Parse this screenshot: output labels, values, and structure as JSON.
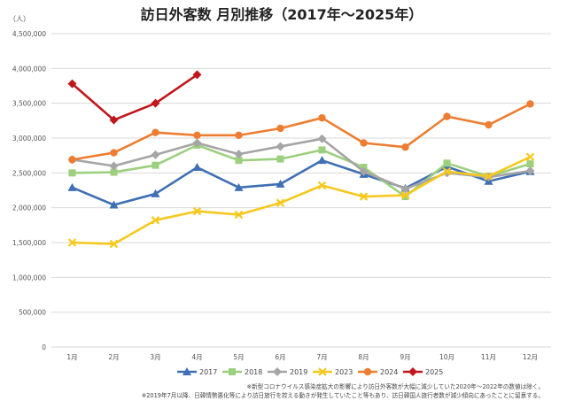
{
  "chart_data": {
    "type": "line",
    "title": "訪日外客数 月別推移（2017年〜2025年）",
    "ylabel": "（人）",
    "categories": [
      "1月",
      "2月",
      "3月",
      "4月",
      "5月",
      "6月",
      "7月",
      "8月",
      "9月",
      "10月",
      "11月",
      "12月"
    ],
    "ylim": [
      0,
      4500000
    ],
    "yticks": [
      "0",
      "500,000",
      "1,000,000",
      "1,500,000",
      "2,000,000",
      "2,500,000",
      "3,000,000",
      "3,500,000",
      "4,000,000",
      "4,500,000"
    ],
    "grid": true,
    "legend_position": "bottom",
    "series": [
      {
        "name": "2017",
        "color": "#3f6fb5",
        "marker": "triangle",
        "values": [
          2290000,
          2040000,
          2200000,
          2580000,
          2290000,
          2340000,
          2680000,
          2480000,
          2280000,
          2590000,
          2380000,
          2520000
        ]
      },
      {
        "name": "2018",
        "color": "#9ccf7e",
        "marker": "square",
        "values": [
          2500000,
          2510000,
          2610000,
          2900000,
          2680000,
          2700000,
          2830000,
          2580000,
          2160000,
          2640000,
          2450000,
          2630000
        ]
      },
      {
        "name": "2019",
        "color": "#a5a5a5",
        "marker": "diamond",
        "values": [
          2690000,
          2600000,
          2760000,
          2930000,
          2770000,
          2880000,
          2990000,
          2520000,
          2270000,
          2500000,
          2440000,
          2530000
        ]
      },
      {
        "name": "2023",
        "color": "#f6c81e",
        "marker": "cross",
        "values": [
          1500000,
          1480000,
          1820000,
          1950000,
          1900000,
          2070000,
          2320000,
          2160000,
          2180000,
          2520000,
          2450000,
          2730000
        ]
      },
      {
        "name": "2024",
        "color": "#ed7d31",
        "marker": "circle",
        "values": [
          2690000,
          2790000,
          3080000,
          3040000,
          3040000,
          3140000,
          3290000,
          2930000,
          2870000,
          3310000,
          3190000,
          3490000
        ]
      },
      {
        "name": "2025",
        "color": "#c0171d",
        "marker": "diamond",
        "values": [
          3780000,
          3260000,
          3500000,
          3910000,
          null,
          null,
          null,
          null,
          null,
          null,
          null,
          null
        ]
      }
    ],
    "notes": [
      "※新型コロナウイルス感染症拡大の影響により訪日外客数が大幅に減少していた2020年〜2022年の数値は除く。",
      "※2019年7月以降、日韓情勢悪化等により訪日旅行を控える動きが発生していたこと等もあり、訪日韓国人旅行者数が減少傾向にあったことに留意する。"
    ]
  }
}
